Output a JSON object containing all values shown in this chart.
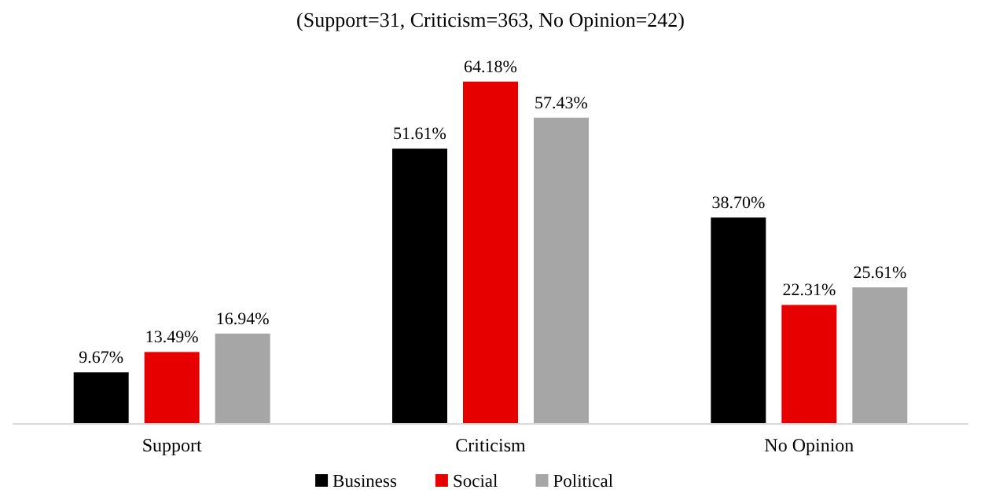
{
  "chart_data": {
    "type": "bar",
    "title": "(Support=31, Criticism=363, No Opinion=242)",
    "categories": [
      "Support",
      "Criticism",
      "No Opinion"
    ],
    "series": [
      {
        "name": "Business",
        "color": "#000000",
        "values": [
          9.67,
          51.61,
          38.7
        ],
        "value_labels": [
          "9.67%",
          "51.61%",
          "38.70%"
        ]
      },
      {
        "name": "Social",
        "color": "#e60000",
        "values": [
          13.49,
          64.18,
          22.31
        ],
        "value_labels": [
          "13.49%",
          "64.18%",
          "22.31%"
        ]
      },
      {
        "name": "Political",
        "color": "#a6a6a6",
        "values": [
          16.94,
          57.43,
          25.61
        ],
        "value_labels": [
          "16.94%",
          "57.43%",
          "25.61%"
        ]
      }
    ],
    "legend": "bottom"
  }
}
